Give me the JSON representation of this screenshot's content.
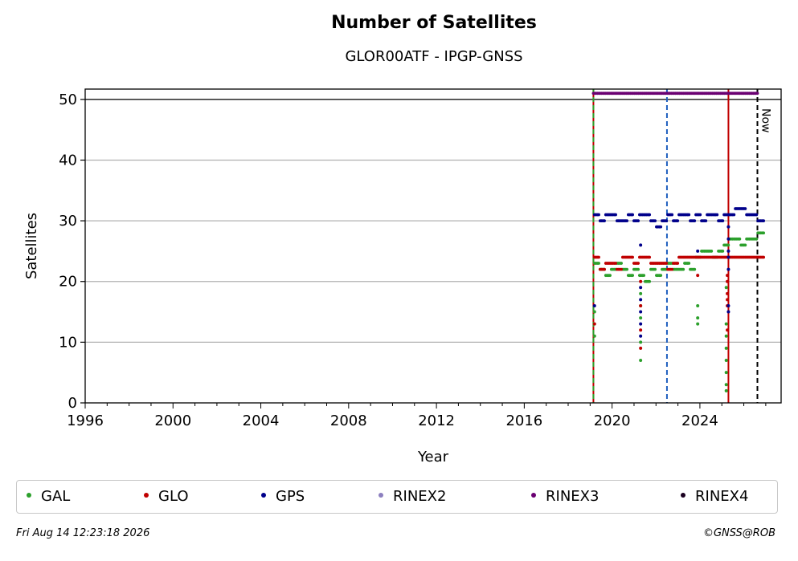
{
  "chart_data": {
    "type": "scatter",
    "title": "Number of Satellites",
    "subtitle": "GLOR00ATF - IPGP-GNSS",
    "xlabel": "Year",
    "ylabel": "Satellites",
    "xlim": [
      1996,
      2027.7
    ],
    "ylim": [
      0,
      51.7
    ],
    "x_ticks": [
      1996,
      2000,
      2004,
      2008,
      2012,
      2016,
      2020,
      2024
    ],
    "y_ticks": [
      0,
      10,
      20,
      30,
      40,
      50
    ],
    "grid": "y",
    "legend_position": "bottom",
    "now_label": "Now",
    "now_year": 2026.62,
    "vlines": [
      {
        "x": 2019.15,
        "color": "#c00000",
        "style": "solid"
      },
      {
        "x": 2019.15,
        "color": "#2ca02c",
        "style": "dashed"
      },
      {
        "x": 2022.5,
        "color": "#1f5fbf",
        "style": "dashed"
      },
      {
        "x": 2025.3,
        "color": "#c00000",
        "style": "solid"
      },
      {
        "x": 2026.62,
        "color": "#000000",
        "style": "dashed"
      }
    ],
    "hline": 50,
    "series": [
      {
        "name": "GAL",
        "color": "#2ca02c",
        "segments": [
          {
            "x0": 2019.2,
            "x1": 2026.9,
            "values": [
              23,
              22,
              21,
              22,
              23,
              22,
              21,
              22,
              21,
              20,
              22,
              21,
              22,
              23,
              22,
              22,
              23,
              22,
              24,
              25,
              25,
              24,
              25,
              26,
              27,
              27,
              26,
              27,
              27,
              28
            ]
          }
        ],
        "spikes": [
          {
            "x": 2019.2,
            "values": [
              11,
              15
            ]
          },
          {
            "x": 2021.3,
            "values": [
              7,
              10,
              14,
              16,
              18
            ]
          },
          {
            "x": 2023.9,
            "values": [
              13,
              14,
              16
            ]
          },
          {
            "x": 2025.2,
            "values": [
              2,
              3,
              5,
              7,
              9,
              11,
              13,
              19
            ]
          }
        ]
      },
      {
        "name": "GLO",
        "color": "#c00000",
        "segments": [
          {
            "x0": 2019.2,
            "x1": 2026.9,
            "values": [
              24,
              22,
              23,
              23,
              22,
              24,
              24,
              23,
              24,
              24,
              23,
              23,
              23,
              22,
              23,
              24,
              24,
              24,
              24,
              24,
              24,
              24,
              24,
              24,
              24,
              24,
              24,
              24,
              24,
              24
            ]
          }
        ],
        "spikes": [
          {
            "x": 2019.2,
            "values": [
              13
            ]
          },
          {
            "x": 2021.3,
            "values": [
              9,
              12,
              16,
              20
            ]
          },
          {
            "x": 2023.9,
            "values": [
              21
            ]
          },
          {
            "x": 2025.25,
            "values": [
              12,
              16,
              17,
              18,
              20,
              21
            ]
          }
        ]
      },
      {
        "name": "GPS",
        "color": "#00008b",
        "segments": [
          {
            "x0": 2019.2,
            "x1": 2026.9,
            "values": [
              31,
              30,
              31,
              31,
              30,
              30,
              31,
              30,
              31,
              31,
              30,
              29,
              30,
              31,
              30,
              31,
              31,
              30,
              31,
              30,
              31,
              31,
              30,
              31,
              31,
              32,
              32,
              31,
              31,
              30
            ]
          }
        ],
        "spikes": [
          {
            "x": 2019.2,
            "values": [
              16
            ]
          },
          {
            "x": 2021.3,
            "values": [
              11,
              13,
              15,
              17,
              19,
              26
            ]
          },
          {
            "x": 2023.9,
            "values": [
              25
            ]
          },
          {
            "x": 2025.3,
            "values": [
              15,
              16,
              22,
              24,
              25,
              27,
              29
            ]
          }
        ]
      },
      {
        "name": "RINEX2",
        "color": "#8c7fbf",
        "segments": [],
        "spikes": []
      },
      {
        "name": "RINEX3",
        "color": "#6a0072",
        "segments": [
          {
            "x0": 2019.15,
            "x1": 2026.62,
            "values": [
              51,
              51,
              51,
              51,
              51,
              51,
              51,
              51,
              51,
              51,
              51,
              51,
              51,
              51,
              51,
              51,
              51,
              51,
              51,
              51,
              51,
              51,
              51,
              51,
              51,
              51,
              51,
              51,
              51,
              51
            ]
          }
        ],
        "spikes": []
      },
      {
        "name": "RINEX4",
        "color": "#1a0020",
        "segments": [],
        "spikes": []
      }
    ]
  },
  "footer": {
    "timestamp": "Fri Aug 14 12:23:18 2026",
    "credit": "©GNSS@ROB"
  }
}
